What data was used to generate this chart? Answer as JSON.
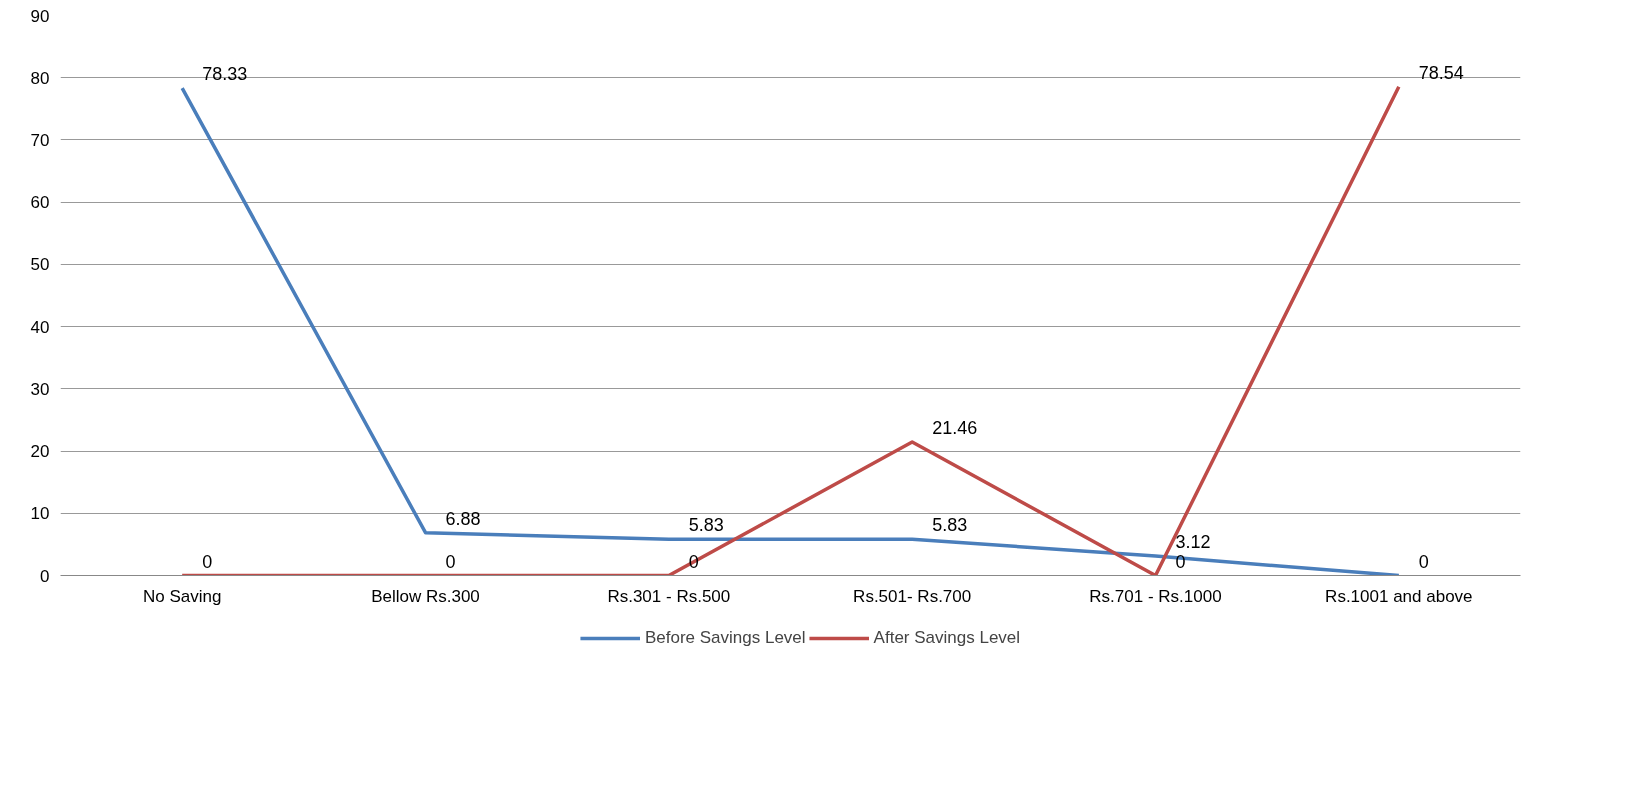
{
  "chart_data": {
    "type": "line",
    "categories": [
      "No Saving",
      "Bellow Rs.300",
      "Rs.301 - Rs.500",
      "Rs.501- Rs.700",
      "Rs.701 - Rs.1000",
      "Rs.1001 and above"
    ],
    "series": [
      {
        "name": "Before Savings Level",
        "color": "#4a7ebb",
        "values": [
          78.33,
          6.88,
          5.83,
          5.83,
          3.12,
          0
        ]
      },
      {
        "name": "After Savings Level",
        "color": "#be4b48",
        "values": [
          0,
          0,
          0,
          21.46,
          0,
          78.54
        ]
      }
    ],
    "ylim": [
      0,
      90
    ],
    "yticks": [
      0,
      10,
      20,
      30,
      40,
      50,
      60,
      70,
      80,
      90
    ],
    "grid": "y",
    "legend": "bottom",
    "data_labels": true,
    "marker": "none",
    "line_style": "solid"
  }
}
